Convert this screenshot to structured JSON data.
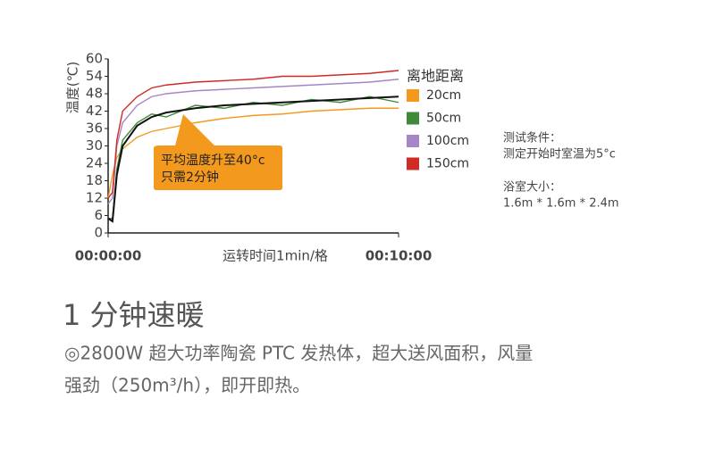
{
  "chart_data": {
    "type": "line",
    "y_label": "温度(℃)",
    "x_label": "运转时间1min/格",
    "legend_title": "离地距离",
    "x": [
      0,
      0.15,
      0.3,
      0.5,
      1,
      1.5,
      2,
      3,
      4,
      5,
      6,
      7,
      8,
      9,
      10
    ],
    "xlim": [
      0,
      10
    ],
    "xticks": [
      {
        "value": 0,
        "label": "00:00:00"
      },
      {
        "value": 10,
        "label": "00:10:00"
      }
    ],
    "ylim": [
      0,
      60
    ],
    "yticks": [
      0,
      6,
      12,
      18,
      24,
      30,
      36,
      42,
      48,
      54,
      60
    ],
    "series": [
      {
        "name": "20cm",
        "color": "#f39a1e",
        "values": [
          12,
          20,
          26,
          29,
          33,
          35,
          36,
          38,
          39.5,
          40.5,
          41,
          42,
          42.5,
          43,
          43
        ]
      },
      {
        "name": "50cm",
        "color": "#3f8a3a",
        "values": [
          5,
          5,
          22,
          32,
          38,
          41,
          40,
          44,
          43,
          45,
          44,
          46,
          45,
          47,
          45
        ]
      },
      {
        "name": "100cm",
        "color": "#a585c4",
        "values": [
          10,
          12,
          30,
          38,
          44,
          47,
          48,
          49,
          49.5,
          50,
          50.5,
          51,
          51.5,
          52,
          53
        ]
      },
      {
        "name": "150cm",
        "color": "#d12a25",
        "values": [
          12,
          14,
          32,
          42,
          47,
          50,
          51,
          52,
          52.5,
          53,
          54,
          54,
          54.5,
          55,
          56
        ]
      },
      {
        "color": "#111111",
        "values": [
          5,
          4,
          20,
          30,
          37,
          40,
          41.5,
          43,
          44,
          44.5,
          45,
          45.5,
          46,
          46.5,
          47
        ]
      }
    ],
    "annotation": [
      "平均温度升至40°c",
      "只需2分钟"
    ],
    "notes": [
      "测试条件：",
      "测定开始时室温为5°c",
      "浴室大小：",
      "1.6m * 1.6m * 2.4m"
    ]
  },
  "section": {
    "heading": "1 分钟速暖",
    "paragraph": [
      "◎2800W 超大功率陶瓷 PTC 发热体，超大送风面积，风量",
      "强劲（250m³/h），即开即热。"
    ]
  }
}
